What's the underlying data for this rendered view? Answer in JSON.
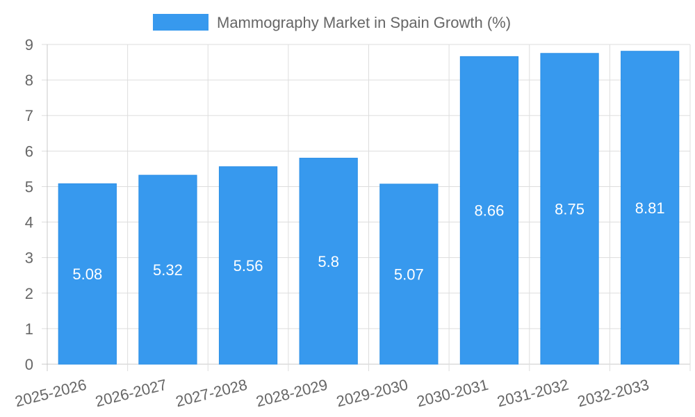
{
  "chart_data": {
    "type": "bar",
    "title": "",
    "xlabel": "",
    "ylabel": "",
    "categories": [
      "2025-2026",
      "2026-2027",
      "2027-2028",
      "2028-2029",
      "2029-2030",
      "2030-2031",
      "2031-2032",
      "2032-2033"
    ],
    "series": [
      {
        "name": "Mammography Market in Spain Growth (%)",
        "values": [
          5.08,
          5.32,
          5.56,
          5.8,
          5.07,
          8.66,
          8.75,
          8.81
        ],
        "color": "#3799ee"
      }
    ],
    "ylim": [
      0,
      9
    ],
    "yticks": [
      "0",
      "1",
      "2",
      "3",
      "4",
      "5",
      "6",
      "7",
      "8",
      "9"
    ],
    "grid": true,
    "legend_position": "top-center",
    "data_labels": [
      "5.08",
      "5.32",
      "5.56",
      "5.8",
      "5.07",
      "8.66",
      "8.75",
      "8.81"
    ]
  },
  "colors": {
    "grid": "#dddddd",
    "axis": "#c8c8c8",
    "text": "#666666",
    "label": "#ffffff"
  }
}
